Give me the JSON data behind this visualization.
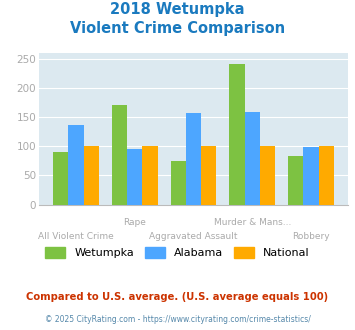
{
  "title_line1": "2018 Wetumpka",
  "title_line2": "Violent Crime Comparison",
  "categories": [
    "All Violent Crime",
    "Rape",
    "Aggravated Assault",
    "Murder & Mans...",
    "Robbery"
  ],
  "wetumpka": [
    90,
    170,
    74,
    240,
    84
  ],
  "alabama": [
    137,
    96,
    157,
    159,
    98
  ],
  "national": [
    100,
    100,
    100,
    100,
    100
  ],
  "color_wetumpka": "#7dc242",
  "color_alabama": "#4da6ff",
  "color_national": "#ffaa00",
  "title_color": "#1a7abf",
  "bg_color": "#dce9f0",
  "tick_color": "#aaaaaa",
  "xlabel_color": "#aaaaaa",
  "ylim": [
    0,
    260
  ],
  "yticks": [
    0,
    50,
    100,
    150,
    200,
    250
  ],
  "footnote1": "Compared to U.S. average. (U.S. average equals 100)",
  "footnote2": "© 2025 CityRating.com - https://www.cityrating.com/crime-statistics/",
  "footnote1_color": "#cc3300",
  "footnote2_color": "#5588aa"
}
